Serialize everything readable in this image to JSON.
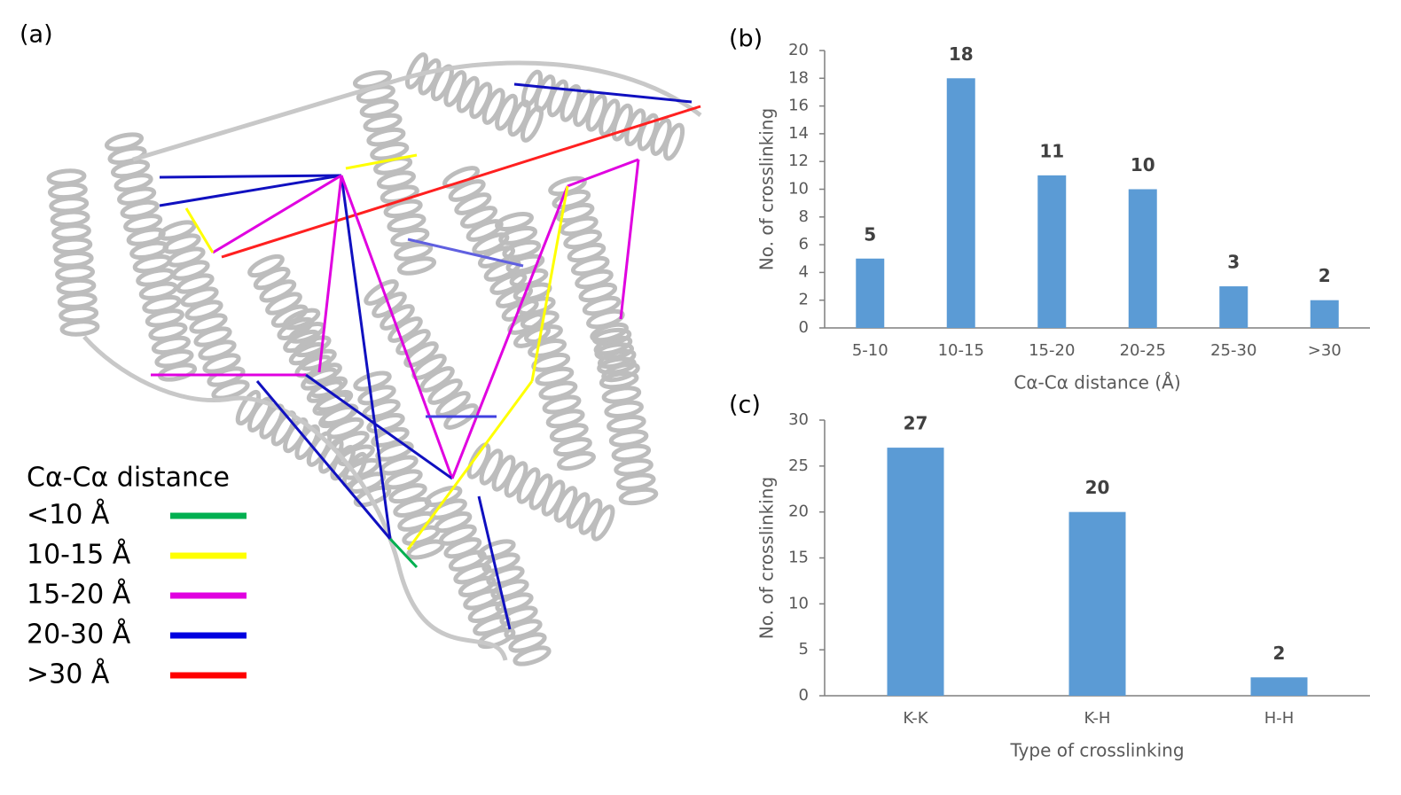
{
  "panel_a": {
    "label": "(a)",
    "legend_title": "Cα-Cα distance",
    "legend": [
      {
        "label": "<10 Å",
        "color": "#00b050"
      },
      {
        "label": "10-15 Å",
        "color": "#ffff00"
      },
      {
        "label": "15-20 Å",
        "color": "#e000e0"
      },
      {
        "label": "20-30 Å",
        "color": "#0000e0"
      },
      {
        "label": ">30 Å",
        "color": "#ff0000"
      }
    ]
  },
  "chart_data": [
    {
      "type": "bar",
      "panel": "(b)",
      "x_label": "Cα-Cα distance (Å)",
      "y_label": "No. of crosslinking",
      "categories": [
        "5-10",
        "10-15",
        "15-20",
        "20-25",
        "25-30",
        ">30"
      ],
      "values": [
        5,
        18,
        11,
        10,
        3,
        2
      ],
      "color": "#5b9bd5",
      "ylim": [
        0,
        20
      ],
      "yticks": [
        0,
        2,
        4,
        6,
        8,
        10,
        12,
        14,
        16,
        18,
        20
      ]
    },
    {
      "type": "bar",
      "panel": "(c)",
      "x_label": "Type of crosslinking",
      "y_label": "No. of crosslinking",
      "categories": [
        "K-K",
        "K-H",
        "H-H"
      ],
      "values": [
        27,
        20,
        2
      ],
      "color": "#5b9bd5",
      "ylim": [
        0,
        30
      ],
      "yticks": [
        0,
        5,
        10,
        15,
        20,
        25,
        30
      ]
    }
  ]
}
